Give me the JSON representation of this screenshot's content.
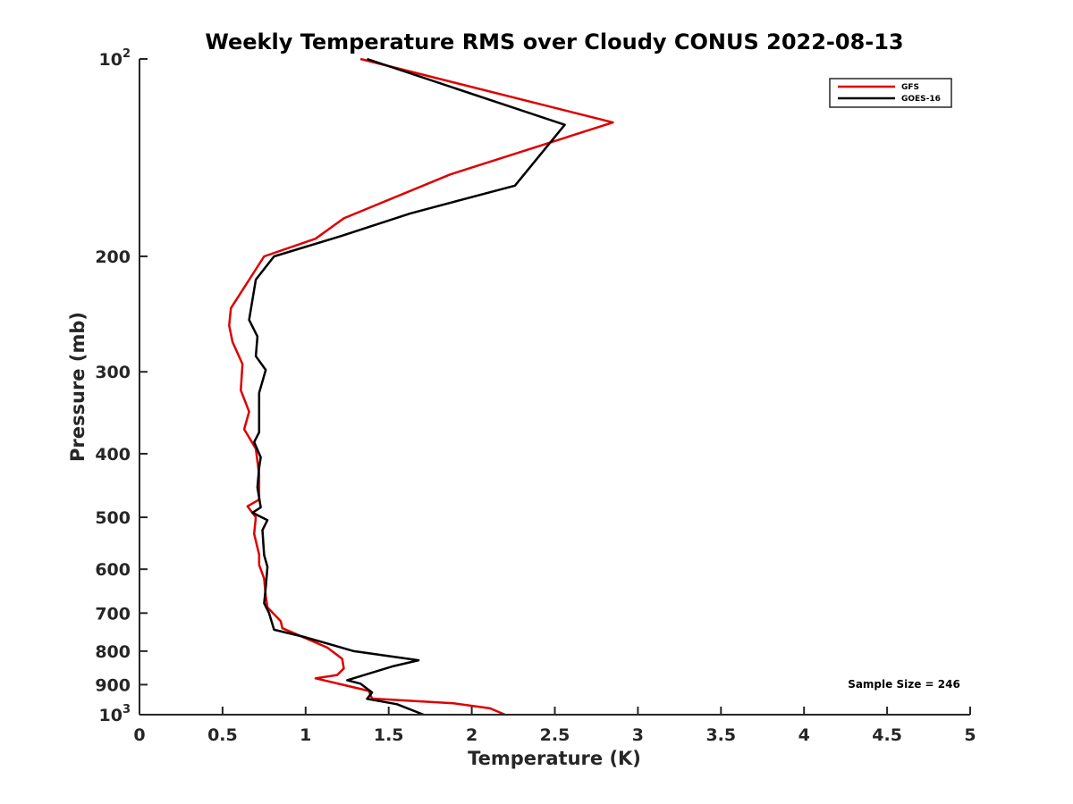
{
  "chart_data": {
    "type": "line",
    "title": "Weekly Temperature RMS over Cloudy CONUS 2022-08-13",
    "xlabel": "Temperature (K)",
    "ylabel": "Pressure (mb)",
    "xlim": [
      0,
      5
    ],
    "ylim": [
      100,
      1000
    ],
    "y_scale": "log",
    "y_reversed": true,
    "grid": false,
    "x_ticks": [
      0,
      0.5,
      1,
      1.5,
      2,
      2.5,
      3,
      3.5,
      4,
      4.5,
      5
    ],
    "x_tick_labels": [
      "0",
      "0.5",
      "1",
      "1.5",
      "2",
      "2.5",
      "3",
      "3.5",
      "4",
      "4.5",
      "5"
    ],
    "y_ticks": [
      100,
      200,
      300,
      400,
      500,
      600,
      700,
      800,
      900,
      1000
    ],
    "y_tick_labels": [
      {
        "base": "10",
        "exp": "2"
      },
      {
        "base": "200",
        "exp": ""
      },
      {
        "base": "300",
        "exp": ""
      },
      {
        "base": "400",
        "exp": ""
      },
      {
        "base": "500",
        "exp": ""
      },
      {
        "base": "600",
        "exp": ""
      },
      {
        "base": "700",
        "exp": ""
      },
      {
        "base": "800",
        "exp": ""
      },
      {
        "base": "900",
        "exp": ""
      },
      {
        "base": "10",
        "exp": "3"
      }
    ],
    "legend_position": "top-right",
    "annotation": "Sample Size = 246",
    "series": [
      {
        "name": "GFS",
        "color": "#dd0000",
        "points": [
          [
            1.33,
            100
          ],
          [
            2.85,
            125
          ],
          [
            1.87,
            150
          ],
          [
            1.23,
            175
          ],
          [
            1.06,
            188
          ],
          [
            0.75,
            200
          ],
          [
            0.55,
            240
          ],
          [
            0.54,
            255
          ],
          [
            0.56,
            270
          ],
          [
            0.62,
            292
          ],
          [
            0.61,
            320
          ],
          [
            0.66,
            345
          ],
          [
            0.63,
            367
          ],
          [
            0.7,
            393
          ],
          [
            0.72,
            430
          ],
          [
            0.72,
            470
          ],
          [
            0.65,
            481
          ],
          [
            0.7,
            500
          ],
          [
            0.69,
            530
          ],
          [
            0.72,
            570
          ],
          [
            0.72,
            591
          ],
          [
            0.75,
            620
          ],
          [
            0.76,
            660
          ],
          [
            0.77,
            686
          ],
          [
            0.85,
            720
          ],
          [
            0.86,
            738
          ],
          [
            1.13,
            790
          ],
          [
            1.22,
            822
          ],
          [
            1.23,
            850
          ],
          [
            1.19,
            870
          ],
          [
            1.06,
            880
          ],
          [
            1.38,
            920
          ],
          [
            1.4,
            945
          ],
          [
            1.89,
            961
          ],
          [
            2.11,
            978
          ],
          [
            2.2,
            1000
          ]
        ]
      },
      {
        "name": "GOES-16",
        "color": "#000000",
        "points": [
          [
            1.37,
            100
          ],
          [
            2.56,
            126
          ],
          [
            2.26,
            156
          ],
          [
            1.63,
            172
          ],
          [
            1.22,
            186
          ],
          [
            0.81,
            200
          ],
          [
            0.7,
            217
          ],
          [
            0.66,
            250
          ],
          [
            0.71,
            265
          ],
          [
            0.7,
            284
          ],
          [
            0.76,
            298
          ],
          [
            0.72,
            323
          ],
          [
            0.72,
            352
          ],
          [
            0.72,
            371
          ],
          [
            0.69,
            384
          ],
          [
            0.73,
            405
          ],
          [
            0.72,
            420
          ],
          [
            0.71,
            450
          ],
          [
            0.73,
            483
          ],
          [
            0.68,
            492
          ],
          [
            0.77,
            505
          ],
          [
            0.74,
            523
          ],
          [
            0.75,
            571
          ],
          [
            0.77,
            595
          ],
          [
            0.76,
            640
          ],
          [
            0.75,
            676
          ],
          [
            0.78,
            700
          ],
          [
            0.81,
            742
          ],
          [
            1.0,
            762
          ],
          [
            1.29,
            800
          ],
          [
            1.68,
            826
          ],
          [
            1.53,
            843
          ],
          [
            1.25,
            886
          ],
          [
            1.33,
            897
          ],
          [
            1.4,
            925
          ],
          [
            1.37,
            946
          ],
          [
            1.55,
            964
          ],
          [
            1.71,
            1000
          ]
        ]
      }
    ]
  }
}
